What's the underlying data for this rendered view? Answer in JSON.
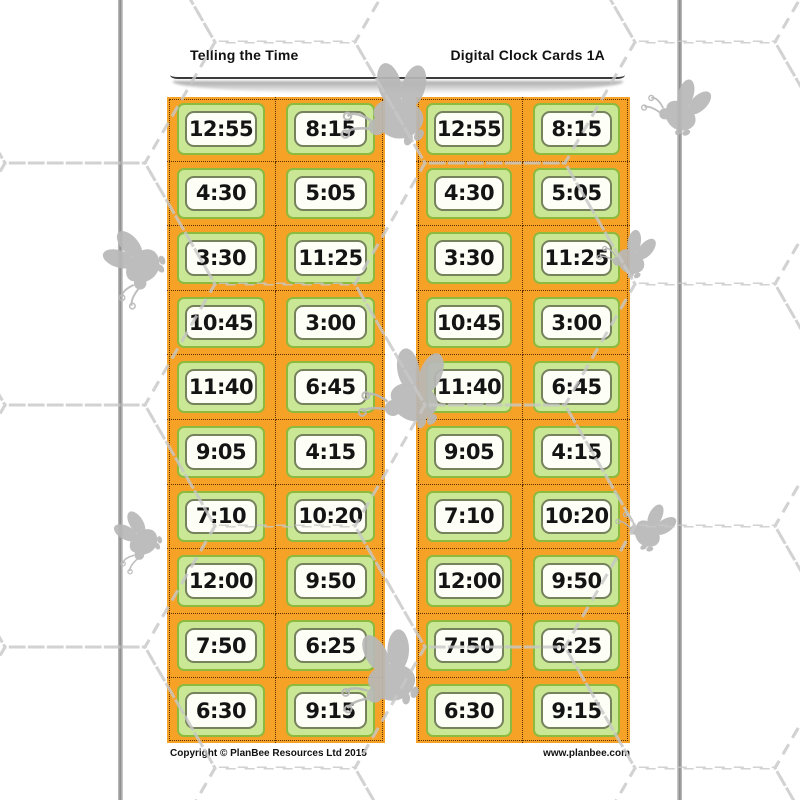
{
  "header": {
    "lesson_title": "Telling the Time",
    "sheet_title": "Digital Clock Cards 1A"
  },
  "cards": {
    "group_count": 2,
    "rows_per_group": 10,
    "column_a_times": [
      "12:55",
      "4:30",
      "3:30",
      "10:45",
      "11:40",
      "9:05",
      "7:10",
      "12:00",
      "7:50",
      "6:30"
    ],
    "column_b_times": [
      "8:15",
      "5:05",
      "11:25",
      "3:00",
      "6:45",
      "4:15",
      "10:20",
      "9:50",
      "6:25",
      "9:15"
    ]
  },
  "footer": {
    "copyright": "Copyright © PlanBee Resources Ltd 2015",
    "website": "www.planbee.com"
  },
  "decorations": {
    "bee_icon_count": 8,
    "background_pattern": "dashed-hexagon-grid"
  },
  "colors": {
    "card_orange": "#F6A227",
    "card_green_fill": "#C9E795",
    "card_green_border": "#8CBA3F",
    "display_border": "#75825C",
    "cut_line": "#5C2E00",
    "hex_pattern": "#C7C7C7",
    "bee_gray": "#B8B8B8"
  }
}
